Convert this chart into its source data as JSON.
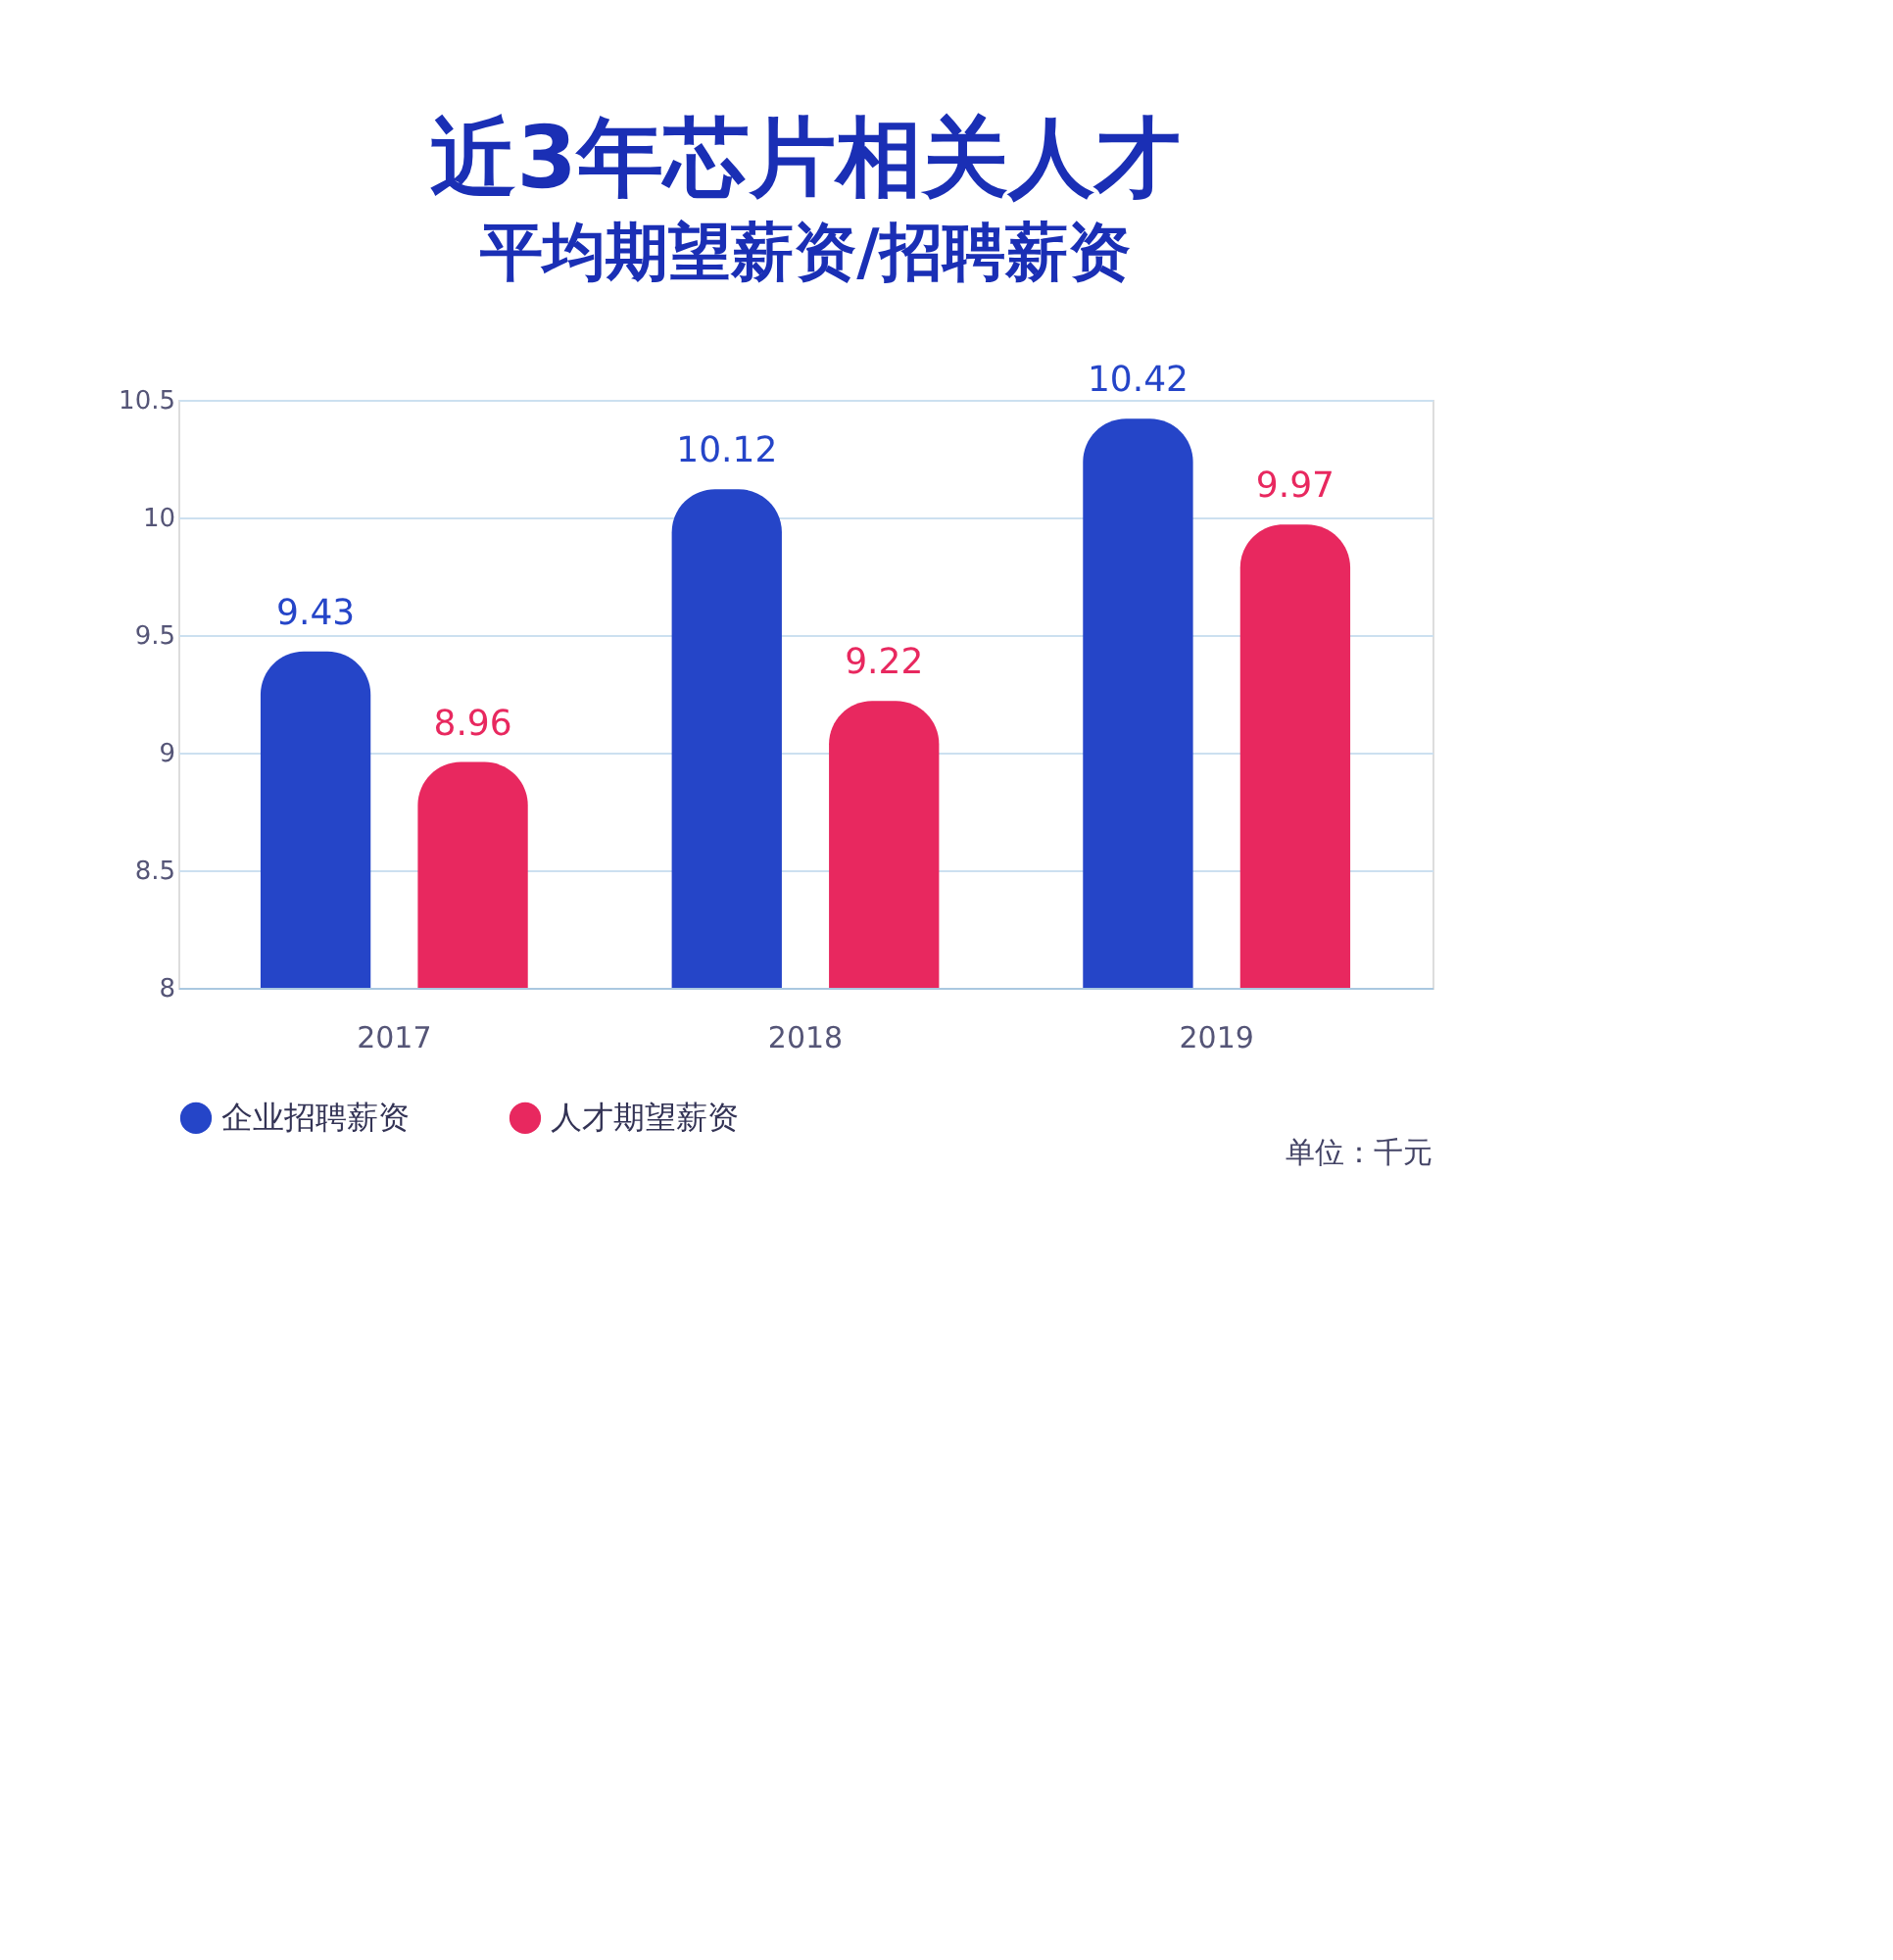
{
  "chart_data": {
    "type": "bar",
    "title": "近3年芯片相关人才",
    "subtitle": "平均期望薪资/招聘薪资",
    "categories": [
      "2017",
      "2018",
      "2019"
    ],
    "series": [
      {
        "name": "企业招聘薪资",
        "color": "#2545c8",
        "values": [
          9.43,
          10.12,
          10.42
        ]
      },
      {
        "name": "人才期望薪资",
        "color": "#e8285f",
        "values": [
          8.96,
          9.22,
          9.97
        ]
      }
    ],
    "ylim": [
      8,
      10.5
    ],
    "yticks": [
      8,
      8.5,
      9,
      9.5,
      10,
      10.5
    ],
    "grid": "y",
    "legend": "bottom",
    "data_labels": true,
    "annotations": [
      "单位：千元"
    ]
  }
}
